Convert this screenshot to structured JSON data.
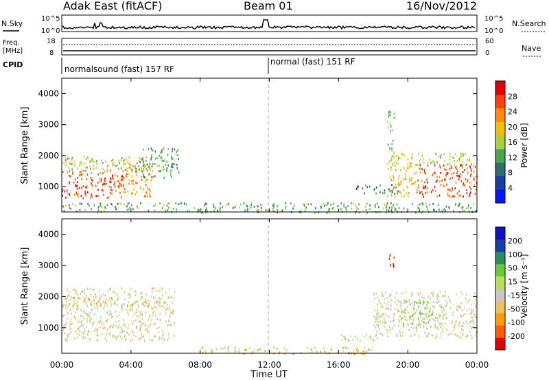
{
  "header": {
    "station": "Adak East (fitACF)",
    "beam": "Beam 01",
    "date": "16/Nov/2012"
  },
  "top_panels": {
    "nsky_label": "N.Sky",
    "nsearch_label": "N.Search",
    "left_ticks_top": [
      "10^5",
      "10^0"
    ],
    "right_ticks_top": [
      "10^5",
      "10^0"
    ],
    "freq_label_1": "Freq.",
    "freq_label_2": "[MHz]",
    "freq_ticks": [
      "18",
      "8"
    ],
    "nave_label": "Nave",
    "nave_ticks": [
      "60",
      "0"
    ],
    "cpid_label": "CPID",
    "cpid_segments": [
      "normalsound (fast) 157 RF",
      "normal (fast) 151 RF"
    ]
  },
  "power_panel": {
    "ylabel": "Slant Range [km]",
    "yticks": [
      "1000",
      "2000",
      "3000",
      "4000"
    ],
    "colorbar_label": "Power [dB]",
    "colorbar_ticks": [
      "4",
      "8",
      "12",
      "16",
      "20",
      "24",
      "28"
    ]
  },
  "velocity_panel": {
    "ylabel": "Slant Range [km]",
    "yticks": [
      "1000",
      "2000",
      "3000",
      "4000"
    ],
    "colorbar_label": "Velocity [m s⁻¹]",
    "colorbar_ticks": [
      "-200",
      "-100",
      "-50",
      "-15",
      "15",
      "50",
      "100",
      "200"
    ]
  },
  "xaxis": {
    "label": "Time UT",
    "ticks": [
      "00:00",
      "04:00",
      "08:00",
      "12:00",
      "16:00",
      "20:00",
      "00:00"
    ]
  },
  "colors": {
    "power_scale": [
      "#0018ff",
      "#1a3ea8",
      "#2e6e6e",
      "#48a64e",
      "#a8d040",
      "#f0c000",
      "#ff8c00",
      "#ff4000",
      "#e60000"
    ],
    "velocity_scale": [
      "#e60000",
      "#ff5a00",
      "#ff9a00",
      "#f0c060",
      "#c8c8c0",
      "#b4e060",
      "#66cc33",
      "#2a8a60",
      "#1a3ea8",
      "#1010c0"
    ]
  },
  "chart_data": [
    {
      "type": "heatmap",
      "name": "Power",
      "x_range_hours": [
        0,
        24
      ],
      "y_range_km": [
        180,
        4500
      ],
      "value_range": [
        0,
        30
      ],
      "regions": [
        {
          "time": [
            0.0,
            3.5
          ],
          "range_km": [
            650,
            1550
          ],
          "level": 28
        },
        {
          "time": [
            3.5,
            5.2
          ],
          "range_km": [
            700,
            1800
          ],
          "level": 24
        },
        {
          "time": [
            0.0,
            5.0
          ],
          "range_km": [
            1500,
            2000
          ],
          "level": 16
        },
        {
          "time": [
            4.5,
            6.8
          ],
          "range_km": [
            1300,
            2300
          ],
          "level": 10
        },
        {
          "time": [
            17.0,
            19.5
          ],
          "range_km": [
            800,
            1100
          ],
          "level": 8
        },
        {
          "time": [
            18.8,
            20.5
          ],
          "range_km": [
            700,
            2100
          ],
          "level": 20
        },
        {
          "time": [
            20.5,
            24.0
          ],
          "range_km": [
            700,
            1750
          ],
          "level": 28
        },
        {
          "time": [
            20.5,
            24.0
          ],
          "range_km": [
            1700,
            2100
          ],
          "level": 14
        },
        {
          "time": [
            18.8,
            19.2
          ],
          "range_km": [
            2100,
            3500
          ],
          "level": 12
        },
        {
          "time": [
            0.0,
            24.0
          ],
          "range_km": [
            180,
            500
          ],
          "level": 12
        }
      ]
    },
    {
      "type": "heatmap",
      "name": "Velocity",
      "x_range_hours": [
        0,
        24
      ],
      "y_range_km": [
        180,
        4500
      ],
      "value_range": [
        -250,
        250
      ],
      "regions": [
        {
          "time": [
            0.0,
            6.5
          ],
          "range_km": [
            600,
            2300
          ],
          "level": 0
        },
        {
          "time": [
            18.0,
            24.0
          ],
          "range_km": [
            700,
            2200
          ],
          "level": 0
        },
        {
          "time": [
            19.5,
            22.0
          ],
          "range_km": [
            1000,
            1900
          ],
          "level": 30
        },
        {
          "time": [
            18.9,
            19.2
          ],
          "range_km": [
            2800,
            3400
          ],
          "level": -200
        },
        {
          "time": [
            16.0,
            18.0
          ],
          "range_km": [
            600,
            800
          ],
          "level": 20
        },
        {
          "time": [
            8.0,
            18.0
          ],
          "range_km": [
            180,
            400
          ],
          "level": -40
        },
        {
          "time": [
            0.0,
            6.0
          ],
          "range_km": [
            1700,
            2000
          ],
          "level": -30
        }
      ]
    }
  ]
}
